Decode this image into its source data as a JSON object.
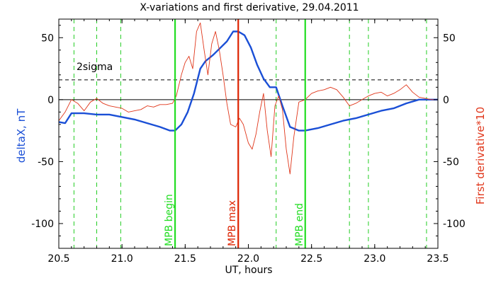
{
  "chart_data": {
    "type": "line",
    "title": "X-variations and first derivative, 29.04.2011",
    "xlabel": "UT, hours",
    "ylabel_left": "deltaX, nT",
    "ylabel_right": "First derivative*10",
    "xlim": [
      20.5,
      23.5
    ],
    "ylim": [
      -120,
      65
    ],
    "x_ticks": [
      "20.5",
      "21.0",
      "21.5",
      "22.0",
      "22.5",
      "23.0",
      "23.5"
    ],
    "x_tick_values": [
      20.5,
      21.0,
      21.5,
      22.0,
      22.5,
      23.0,
      23.5
    ],
    "y_ticks": [
      "50",
      "0",
      "-50",
      "-100"
    ],
    "y_tick_values": [
      50,
      0,
      -50,
      -100
    ],
    "sigma_label": "2sigma",
    "sigma_level": 16,
    "zero_level": 0,
    "series": [
      {
        "name": "deltaX, nT",
        "color": "#1a4fd6",
        "x": [
          20.5,
          20.55,
          20.6,
          20.7,
          20.8,
          20.9,
          21.0,
          21.1,
          21.2,
          21.3,
          21.38,
          21.42,
          21.47,
          21.52,
          21.57,
          21.62,
          21.66,
          21.72,
          21.78,
          21.83,
          21.88,
          21.92,
          21.97,
          22.02,
          22.07,
          22.12,
          22.17,
          22.22,
          22.27,
          22.33,
          22.4,
          22.45,
          22.55,
          22.65,
          22.75,
          22.85,
          22.95,
          23.05,
          23.15,
          23.25,
          23.35,
          23.45,
          23.5
        ],
        "y": [
          -18,
          -19,
          -11,
          -11,
          -12,
          -12,
          -14,
          -16,
          -19,
          -22,
          -25,
          -25,
          -20,
          -10,
          5,
          25,
          31,
          36,
          42,
          47,
          55,
          55,
          52,
          42,
          28,
          17,
          10,
          10,
          -5,
          -22,
          -25,
          -25,
          -23,
          -20,
          -17,
          -15,
          -12,
          -9,
          -7,
          -3,
          0,
          0,
          0
        ]
      },
      {
        "name": "First derivative*10",
        "color": "#e0361a",
        "x": [
          20.5,
          20.55,
          20.6,
          20.65,
          20.7,
          20.75,
          20.8,
          20.85,
          20.9,
          20.95,
          21.0,
          21.05,
          21.1,
          21.15,
          21.2,
          21.25,
          21.3,
          21.35,
          21.4,
          21.43,
          21.47,
          21.5,
          21.53,
          21.56,
          21.59,
          21.62,
          21.65,
          21.68,
          21.71,
          21.74,
          21.77,
          21.8,
          21.83,
          21.86,
          21.9,
          21.93,
          21.96,
          22.0,
          22.03,
          22.06,
          22.09,
          22.12,
          22.15,
          22.18,
          22.21,
          22.24,
          22.27,
          22.3,
          22.33,
          22.36,
          22.4,
          22.45,
          22.5,
          22.55,
          22.6,
          22.65,
          22.7,
          22.75,
          22.8,
          22.85,
          22.9,
          22.95,
          23.0,
          23.05,
          23.1,
          23.15,
          23.2,
          23.25,
          23.3,
          23.35,
          23.4,
          23.45,
          23.5
        ],
        "y": [
          -17,
          -10,
          0,
          -3,
          -9,
          -2,
          1,
          -3,
          -5,
          -6,
          -7,
          -10,
          -9,
          -8,
          -5,
          -6,
          -4,
          -4,
          -3,
          3,
          20,
          30,
          35,
          25,
          55,
          62,
          40,
          20,
          45,
          55,
          40,
          20,
          -3,
          -20,
          -22,
          -15,
          -20,
          -35,
          -40,
          -28,
          -10,
          5,
          -25,
          -46,
          -5,
          3,
          -8,
          -40,
          -60,
          -30,
          -2,
          0,
          5,
          7,
          8,
          10,
          8,
          2,
          -5,
          -3,
          0,
          3,
          5,
          6,
          3,
          5,
          8,
          12,
          6,
          2,
          1,
          0,
          0
        ]
      }
    ],
    "markers": [
      {
        "label": "MPB begin",
        "x": 21.42,
        "color": "#22dd22"
      },
      {
        "label": "MPB max",
        "x": 21.92,
        "color": "#dd2200"
      },
      {
        "label": "MPB end",
        "x": 22.45,
        "color": "#22dd22"
      }
    ],
    "dashed_lines_x": [
      20.62,
      20.8,
      20.99,
      22.22,
      22.8,
      22.95,
      23.41
    ]
  }
}
